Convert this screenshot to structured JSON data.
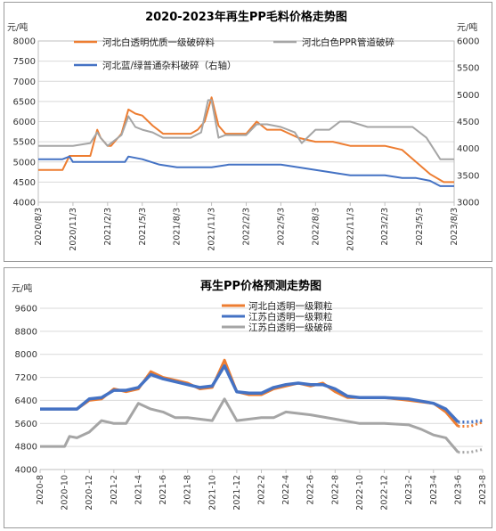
{
  "chart_data": [
    {
      "type": "line",
      "title": "2020-2023年再生PP毛料价格走势图",
      "ylabel_left": "元/吨",
      "ylabel_right": "元/吨",
      "ylim_left": [
        4000,
        8000
      ],
      "yticks_left": [
        "4000",
        "4500",
        "5000",
        "5500",
        "6000",
        "6500",
        "7000",
        "7500",
        "8000"
      ],
      "ylim_right": [
        3000,
        6000
      ],
      "yticks_right": [
        "3000",
        "3500",
        "4000",
        "4500",
        "5000",
        "5500",
        "6000"
      ],
      "xticks": [
        "2020/8/3",
        "2020/11/3",
        "2021/2/3",
        "2021/5/3",
        "2021/8/3",
        "2021/11/3",
        "2022/2/3",
        "2022/5/3",
        "2022/8/3",
        "2022/11/3",
        "2023/2/3",
        "2023/5/3",
        "2023/8/3"
      ],
      "grid": true,
      "legend": "top",
      "series": [
        {
          "name": "河北白透明优质一级破碎料",
          "axis": "left",
          "color": "#ed7d31",
          "x": [
            0,
            0.7,
            0.9,
            1.0,
            1.5,
            1.7,
            1.8,
            2.0,
            2.1,
            2.4,
            2.6,
            2.8,
            3.0,
            3.3,
            3.6,
            4.0,
            4.4,
            4.6,
            4.8,
            5.0,
            5.2,
            5.4,
            5.6,
            6.0,
            6.3,
            6.6,
            7.0,
            7.5,
            8.0,
            8.5,
            9.0,
            9.5,
            10.0,
            10.5,
            10.9,
            11.3,
            11.7,
            12.0
          ],
          "y": [
            4800,
            4800,
            5150,
            5150,
            5150,
            5800,
            5600,
            5400,
            5400,
            5700,
            6300,
            6200,
            6150,
            5900,
            5700,
            5700,
            5700,
            5800,
            6000,
            6600,
            5900,
            5700,
            5700,
            5700,
            6000,
            5800,
            5800,
            5600,
            5500,
            5500,
            5400,
            5400,
            5400,
            5300,
            5000,
            4700,
            4500,
            4500
          ]
        },
        {
          "name": "河北白色PPR管道破碎",
          "axis": "right",
          "color": "#a5a5a5",
          "x": [
            0,
            1.0,
            1.5,
            1.7,
            1.8,
            2.0,
            2.4,
            2.6,
            2.8,
            3.0,
            3.3,
            3.6,
            4.0,
            4.4,
            4.7,
            4.9,
            5.0,
            5.2,
            5.4,
            6.0,
            6.3,
            6.6,
            7.0,
            7.4,
            7.6,
            8.0,
            8.4,
            8.7,
            9.0,
            9.5,
            10.0,
            10.4,
            10.8,
            11.2,
            11.6,
            12.0
          ],
          "y": [
            4050,
            4050,
            4100,
            4300,
            4200,
            4050,
            4250,
            4600,
            4400,
            4350,
            4300,
            4200,
            4200,
            4200,
            4300,
            4900,
            4900,
            4200,
            4250,
            4250,
            4450,
            4450,
            4400,
            4300,
            4100,
            4350,
            4350,
            4500,
            4500,
            4400,
            4400,
            4400,
            4400,
            4200,
            3800,
            3800
          ]
        },
        {
          "name": "河北蓝/绿普通杂料破碎（右轴）",
          "axis": "right",
          "color": "#4472c4",
          "x": [
            0,
            0.7,
            0.9,
            1.0,
            2.5,
            2.6,
            3.0,
            3.5,
            4.0,
            5.0,
            5.5,
            6.0,
            7.0,
            7.5,
            8.0,
            8.5,
            9.0,
            9.5,
            10.0,
            10.5,
            10.9,
            11.3,
            11.6,
            12.0
          ],
          "y": [
            3800,
            3800,
            3850,
            3750,
            3750,
            3850,
            3800,
            3700,
            3650,
            3650,
            3700,
            3700,
            3700,
            3650,
            3600,
            3550,
            3500,
            3500,
            3500,
            3450,
            3450,
            3400,
            3300,
            3300
          ]
        }
      ]
    },
    {
      "type": "line",
      "title": "再生PP价格预测走势图",
      "ylabel": "元/吨",
      "ylim": [
        4000,
        9600
      ],
      "yticks": [
        "4000",
        "4800",
        "5600",
        "6400",
        "7200",
        "8000",
        "8800",
        "9600"
      ],
      "xticks": [
        "2020-8",
        "2020-10",
        "2020-12",
        "2021-2",
        "2021-4",
        "2021-6",
        "2021-8",
        "2021-10",
        "2021-12",
        "2022-2",
        "2022-4",
        "2022-6",
        "2022-8",
        "2022-10",
        "2022-12",
        "2023-2",
        "2023-4",
        "2023-6",
        "2023-8"
      ],
      "grid": true,
      "legend": "top-right",
      "forecast_dotted_tail": true,
      "series": [
        {
          "name": "河北白透明一级颗粒",
          "color": "#ed7d31",
          "x": [
            0,
            1.5,
            2.0,
            2.5,
            3.0,
            3.5,
            4.0,
            4.5,
            5.0,
            6.0,
            6.5,
            7.0,
            7.5,
            8.0,
            8.5,
            9.0,
            9.5,
            10.0,
            10.5,
            11.0,
            11.5,
            12.0,
            12.5,
            13.0,
            14.0,
            15.0,
            16.0,
            16.5,
            17.0,
            17.5,
            18.0
          ],
          "y": [
            6100,
            6100,
            6400,
            6450,
            6800,
            6700,
            6800,
            7400,
            7200,
            7000,
            6800,
            6850,
            7800,
            6700,
            6600,
            6600,
            6800,
            6900,
            7000,
            6900,
            7000,
            6700,
            6500,
            6500,
            6500,
            6400,
            6300,
            6000,
            5500,
            5500,
            5650
          ]
        },
        {
          "name": "江苏白透明一级颗粒",
          "color": "#4472c4",
          "x": [
            0,
            1.5,
            2.0,
            2.5,
            3.0,
            3.5,
            4.0,
            4.5,
            5.0,
            6.0,
            6.5,
            7.0,
            7.5,
            8.0,
            8.5,
            9.0,
            9.5,
            10.0,
            10.5,
            11.0,
            11.5,
            12.0,
            12.5,
            13.0,
            14.0,
            15.0,
            16.0,
            16.5,
            17.0,
            17.5,
            18.0
          ],
          "y": [
            6100,
            6100,
            6450,
            6500,
            6750,
            6750,
            6850,
            7300,
            7150,
            6950,
            6850,
            6900,
            7600,
            6700,
            6650,
            6650,
            6850,
            6950,
            7000,
            6950,
            6950,
            6800,
            6550,
            6500,
            6500,
            6450,
            6300,
            6100,
            5650,
            5650,
            5700
          ]
        },
        {
          "name": "江苏白透明一级破碎",
          "color": "#a5a5a5",
          "x": [
            0,
            1.0,
            1.2,
            1.5,
            2.0,
            2.5,
            3.0,
            3.5,
            4.0,
            4.5,
            5.0,
            5.5,
            6.0,
            7.0,
            7.5,
            8.0,
            9.0,
            9.5,
            10.0,
            11.0,
            12.0,
            13.0,
            14.0,
            15.0,
            15.5,
            16.0,
            16.5,
            17.0,
            17.5,
            18.0
          ],
          "y": [
            4800,
            4800,
            5150,
            5100,
            5300,
            5700,
            5600,
            5600,
            6300,
            6100,
            6000,
            5800,
            5800,
            5700,
            6450,
            5700,
            5800,
            5800,
            6000,
            5900,
            5750,
            5600,
            5600,
            5550,
            5400,
            5200,
            5100,
            4600,
            4600,
            4700
          ]
        }
      ]
    }
  ]
}
